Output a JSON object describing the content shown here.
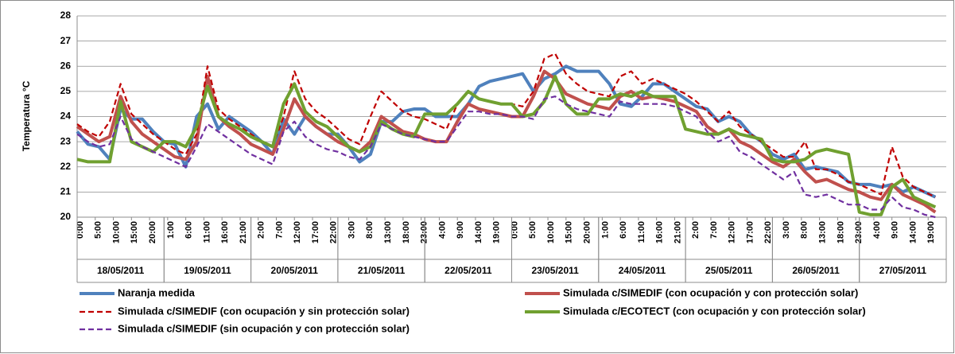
{
  "chart_data": {
    "type": "line",
    "y_label": "Temperatura °C",
    "ylim": [
      20,
      28
    ],
    "yticks": [
      20,
      21,
      22,
      23,
      24,
      25,
      26,
      27,
      28
    ],
    "grid": true,
    "xlim": [
      0,
      240
    ],
    "xticks": [
      {
        "value": 0,
        "label": "0:00"
      },
      {
        "value": 5,
        "label": "5:00"
      },
      {
        "value": 10,
        "label": "10:00"
      },
      {
        "value": 15,
        "label": "15:00"
      },
      {
        "value": 20,
        "label": "20:00"
      },
      {
        "value": 25,
        "label": "1:00"
      },
      {
        "value": 30,
        "label": "6:00"
      },
      {
        "value": 35,
        "label": "11:00"
      },
      {
        "value": 40,
        "label": "16:00"
      },
      {
        "value": 45,
        "label": "21:00"
      },
      {
        "value": 50,
        "label": "2:00"
      },
      {
        "value": 55,
        "label": "7:00"
      },
      {
        "value": 60,
        "label": "12:00"
      },
      {
        "value": 65,
        "label": "17:00"
      },
      {
        "value": 70,
        "label": "22:00"
      },
      {
        "value": 75,
        "label": "3:00"
      },
      {
        "value": 80,
        "label": "8:00"
      },
      {
        "value": 85,
        "label": "13:00"
      },
      {
        "value": 90,
        "label": "18:00"
      },
      {
        "value": 95,
        "label": "23:00"
      },
      {
        "value": 100,
        "label": "4:00"
      },
      {
        "value": 105,
        "label": "9:00"
      },
      {
        "value": 110,
        "label": "14:00"
      },
      {
        "value": 115,
        "label": "19:00"
      },
      {
        "value": 120,
        "label": "0:00"
      },
      {
        "value": 125,
        "label": "5:00"
      },
      {
        "value": 130,
        "label": "10:00"
      },
      {
        "value": 135,
        "label": "15:00"
      },
      {
        "value": 140,
        "label": "20:00"
      },
      {
        "value": 145,
        "label": "1:00"
      },
      {
        "value": 150,
        "label": "6:00"
      },
      {
        "value": 155,
        "label": "11:00"
      },
      {
        "value": 160,
        "label": "16:00"
      },
      {
        "value": 165,
        "label": "21:00"
      },
      {
        "value": 170,
        "label": "2:00"
      },
      {
        "value": 175,
        "label": "7:00"
      },
      {
        "value": 180,
        "label": "12:00"
      },
      {
        "value": 185,
        "label": "17:00"
      },
      {
        "value": 190,
        "label": "22:00"
      },
      {
        "value": 195,
        "label": "3:00"
      },
      {
        "value": 200,
        "label": "8:00"
      },
      {
        "value": 205,
        "label": "13:00"
      },
      {
        "value": 210,
        "label": "18:00"
      },
      {
        "value": 215,
        "label": "23:00"
      },
      {
        "value": 220,
        "label": "4:00"
      },
      {
        "value": 225,
        "label": "9:00"
      },
      {
        "value": 230,
        "label": "14:00"
      },
      {
        "value": 235,
        "label": "19:00"
      }
    ],
    "x_groups": [
      {
        "label": "18/05/2011",
        "range": [
          0,
          24
        ]
      },
      {
        "label": "19/05/2011",
        "range": [
          24,
          48
        ]
      },
      {
        "label": "20/05/2011",
        "range": [
          48,
          72
        ]
      },
      {
        "label": "21/05/2011",
        "range": [
          72,
          96
        ]
      },
      {
        "label": "22/05/2011",
        "range": [
          96,
          120
        ]
      },
      {
        "label": "23/05/2011",
        "range": [
          120,
          144
        ]
      },
      {
        "label": "24/05/2011",
        "range": [
          144,
          168
        ]
      },
      {
        "label": "25/05/2011",
        "range": [
          168,
          192
        ]
      },
      {
        "label": "26/05/2011",
        "range": [
          192,
          216
        ]
      },
      {
        "label": "27/05/2011",
        "range": [
          216,
          240
        ]
      }
    ],
    "x": [
      0,
      3,
      6,
      9,
      12,
      15,
      18,
      21,
      24,
      27,
      30,
      33,
      36,
      39,
      42,
      45,
      48,
      51,
      54,
      57,
      60,
      63,
      66,
      69,
      72,
      75,
      78,
      81,
      84,
      87,
      90,
      93,
      96,
      99,
      102,
      105,
      108,
      111,
      114,
      117,
      120,
      123,
      126,
      129,
      132,
      135,
      138,
      141,
      144,
      147,
      150,
      153,
      156,
      159,
      162,
      165,
      168,
      171,
      174,
      177,
      180,
      183,
      186,
      189,
      192,
      195,
      198,
      201,
      204,
      207,
      210,
      213,
      216,
      219,
      222,
      225,
      228,
      231,
      234,
      237
    ],
    "series": [
      {
        "name": "Naranja medida",
        "color": "#4f81bd",
        "style": "solid",
        "values": [
          23.4,
          22.9,
          22.8,
          22.3,
          24.3,
          23.9,
          23.9,
          23.4,
          23.0,
          22.9,
          22.0,
          24.0,
          24.5,
          23.5,
          24.0,
          23.7,
          23.4,
          23.0,
          22.5,
          23.9,
          23.3,
          24.0,
          23.6,
          23.3,
          23.3,
          22.8,
          22.2,
          22.5,
          23.8,
          23.8,
          24.2,
          24.3,
          24.3,
          24.0,
          24.0,
          24.0,
          24.5,
          25.2,
          25.4,
          25.5,
          25.6,
          25.7,
          25.0,
          25.5,
          25.7,
          26.0,
          25.8,
          25.8,
          25.8,
          25.3,
          24.5,
          24.4,
          24.8,
          25.3,
          25.3,
          25.0,
          24.7,
          24.4,
          24.3,
          23.8,
          24.0,
          23.8,
          23.3,
          23.0,
          22.5,
          22.3,
          22.5,
          21.9,
          22.0,
          21.9,
          21.8,
          21.4,
          21.3,
          21.3,
          21.2,
          21.3,
          21.0,
          21.2,
          21.0,
          20.8
        ]
      },
      {
        "name": "Simulada c/SIMEDIF (con ocupación y con protección solar)",
        "color": "#c0504d",
        "style": "solid",
        "values": [
          23.6,
          23.3,
          23.0,
          23.2,
          24.8,
          23.8,
          23.3,
          23.0,
          22.7,
          22.4,
          22.3,
          23.0,
          25.6,
          24.0,
          23.6,
          23.3,
          22.9,
          22.7,
          22.5,
          23.5,
          24.7,
          24.0,
          23.6,
          23.3,
          23.0,
          22.8,
          22.6,
          23.0,
          24.0,
          23.7,
          23.4,
          23.3,
          23.1,
          23.0,
          23.0,
          23.8,
          24.5,
          24.3,
          24.2,
          24.1,
          24.0,
          24.0,
          24.8,
          25.8,
          25.5,
          24.9,
          24.7,
          24.5,
          24.4,
          24.3,
          24.8,
          25.0,
          24.7,
          24.8,
          24.7,
          24.6,
          24.4,
          24.2,
          23.6,
          23.3,
          23.5,
          23.0,
          22.8,
          22.5,
          22.2,
          22.0,
          22.3,
          21.8,
          21.4,
          21.5,
          21.3,
          21.1,
          21.0,
          20.8,
          20.7,
          21.3,
          20.9,
          20.7,
          20.5,
          20.2
        ]
      },
      {
        "name": "Simulada c/SIMEDIF (con ocupación y sin protección solar)",
        "color": "#c00000",
        "style": "dashed",
        "values": [
          23.7,
          23.4,
          23.2,
          23.8,
          25.3,
          24.1,
          23.7,
          23.3,
          23.0,
          22.7,
          22.5,
          23.3,
          26.0,
          24.3,
          23.9,
          23.6,
          23.3,
          23.0,
          22.8,
          24.0,
          25.8,
          24.7,
          24.2,
          23.9,
          23.5,
          23.1,
          22.9,
          24.0,
          25.0,
          24.6,
          24.2,
          24.0,
          23.9,
          23.7,
          23.5,
          24.5,
          25.0,
          24.7,
          24.6,
          24.5,
          24.5,
          24.4,
          25.0,
          26.3,
          26.5,
          25.7,
          25.3,
          25.0,
          24.9,
          24.8,
          25.6,
          25.8,
          25.3,
          25.5,
          25.3,
          25.1,
          24.9,
          24.6,
          24.2,
          23.8,
          24.2,
          23.6,
          23.3,
          23.0,
          22.7,
          22.4,
          22.4,
          23.0,
          21.9,
          21.9,
          21.7,
          21.4,
          21.3,
          21.1,
          20.9,
          22.8,
          21.6,
          21.2,
          21.0,
          20.8
        ]
      },
      {
        "name": "Simulada c/ECOTECT (con ocupación y con protección solar)",
        "color": "#70a030",
        "style": "solid",
        "values": [
          22.3,
          22.2,
          22.2,
          22.2,
          24.6,
          23.0,
          22.8,
          22.6,
          23.0,
          23.0,
          22.8,
          23.6,
          25.2,
          24.0,
          23.7,
          23.5,
          23.2,
          23.0,
          22.8,
          24.5,
          25.3,
          24.2,
          23.8,
          23.6,
          23.2,
          22.8,
          22.6,
          22.8,
          23.8,
          23.5,
          23.3,
          23.2,
          24.1,
          24.1,
          24.1,
          24.5,
          25.0,
          24.7,
          24.6,
          24.5,
          24.5,
          24.0,
          24.1,
          24.6,
          25.6,
          24.5,
          24.1,
          24.1,
          24.7,
          24.7,
          24.9,
          24.8,
          25.0,
          24.8,
          24.8,
          24.8,
          23.5,
          23.4,
          23.3,
          23.3,
          23.5,
          23.3,
          23.2,
          23.1,
          22.3,
          22.2,
          22.2,
          22.3,
          22.6,
          22.7,
          22.6,
          22.5,
          20.2,
          20.1,
          20.1,
          21.2,
          21.5,
          20.8,
          20.6,
          20.4
        ]
      },
      {
        "name": "Simulada c/SIMEDIF (sin ocupación y con protección solar)",
        "color": "#7030a0",
        "style": "dashed",
        "values": [
          23.3,
          23.0,
          22.8,
          22.9,
          24.0,
          23.1,
          22.8,
          22.6,
          22.4,
          22.2,
          22.0,
          22.8,
          23.7,
          23.4,
          23.1,
          22.8,
          22.5,
          22.3,
          22.1,
          23.4,
          23.8,
          23.2,
          22.9,
          22.7,
          22.6,
          22.4,
          22.3,
          22.8,
          23.7,
          23.5,
          23.3,
          23.2,
          23.1,
          23.0,
          23.0,
          23.6,
          24.2,
          24.2,
          24.1,
          24.1,
          24.0,
          24.0,
          23.9,
          24.7,
          24.8,
          24.5,
          24.3,
          24.2,
          24.1,
          24.0,
          24.6,
          24.5,
          24.5,
          24.5,
          24.5,
          24.4,
          24.2,
          24.0,
          23.4,
          23.0,
          23.2,
          22.6,
          22.4,
          22.1,
          21.8,
          21.5,
          21.8,
          20.9,
          20.8,
          20.9,
          20.7,
          20.5,
          20.5,
          20.3,
          20.3,
          20.8,
          20.4,
          20.3,
          20.1,
          20.0
        ]
      }
    ]
  }
}
